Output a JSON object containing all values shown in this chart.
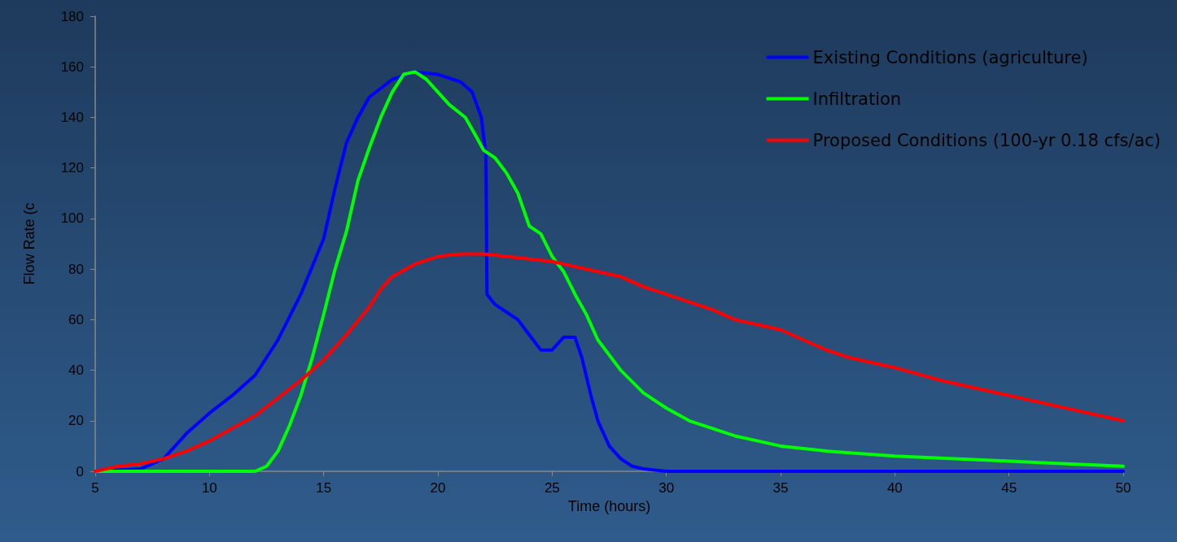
{
  "chart_data": {
    "type": "line",
    "xlabel": "Time (hours)",
    "ylabel": "Flow Rate (c",
    "xlim": [
      5,
      50
    ],
    "xticks": [
      5,
      10,
      15,
      20,
      25,
      30,
      35,
      40,
      45,
      50
    ],
    "ylim": [
      0,
      180
    ],
    "yticks": [
      0,
      20,
      40,
      60,
      80,
      100,
      120,
      140,
      160,
      180
    ],
    "grid": false,
    "legend": "top right",
    "marker": "none",
    "line_style": "solid",
    "series": [
      {
        "name": "Existing Conditions (agriculture)",
        "color": "#0000ff",
        "x": [
          5,
          7,
          8,
          9,
          10,
          11,
          12,
          13,
          14,
          15,
          15.5,
          16,
          16.5,
          17,
          18,
          19,
          20,
          21,
          21.5,
          21.9,
          22.1,
          22.15,
          22.5,
          23,
          23.5,
          24,
          24.5,
          25,
          25.5,
          26,
          26.3,
          26.7,
          27,
          27.5,
          28,
          28.5,
          29,
          30,
          50
        ],
        "values": [
          0,
          1,
          5,
          15,
          23,
          30,
          38,
          52,
          70,
          92,
          112,
          130,
          140,
          148,
          155,
          158,
          157,
          154,
          150,
          140,
          125,
          70,
          66,
          63,
          60,
          54,
          48,
          48,
          53,
          53,
          45,
          30,
          20,
          10,
          5,
          2,
          1,
          0,
          0
        ]
      },
      {
        "name": "Infiltration",
        "color": "#00ff00",
        "x": [
          5,
          12,
          12.5,
          13,
          13.5,
          14,
          14.5,
          15,
          15.5,
          16,
          16.5,
          17,
          17.5,
          18,
          18.5,
          19,
          19.5,
          20,
          20.5,
          21.2,
          21.7,
          22,
          22.5,
          23,
          23.5,
          24,
          24.5,
          25,
          25.5,
          26,
          26.5,
          27,
          28,
          29,
          30,
          31,
          32,
          33,
          34,
          35,
          37,
          40,
          45,
          50
        ],
        "values": [
          0,
          0,
          2,
          8,
          18,
          30,
          45,
          62,
          80,
          95,
          115,
          128,
          140,
          150,
          157,
          158,
          155,
          150,
          145,
          140,
          132,
          127,
          124,
          118,
          110,
          97,
          94,
          85,
          79,
          70,
          62,
          52,
          40,
          31,
          25,
          20,
          17,
          14,
          12,
          10,
          8,
          6,
          4,
          2
        ]
      },
      {
        "name": "Proposed Conditions (100-yr 0.18 cfs/ac)",
        "color": "#ff0000",
        "x": [
          5,
          6,
          7,
          8,
          9,
          10,
          11,
          12,
          13,
          14,
          15,
          16,
          17,
          17.5,
          18,
          19,
          20,
          21,
          22,
          23,
          24,
          25,
          26,
          27,
          28,
          29,
          30,
          31,
          32,
          33,
          34,
          35,
          36,
          37,
          38,
          39,
          40,
          42,
          44,
          46,
          48,
          50
        ],
        "values": [
          0,
          2,
          3,
          5,
          8,
          12,
          17,
          22,
          29,
          36,
          44,
          54,
          65,
          72,
          77,
          82,
          85,
          86,
          86,
          85,
          84,
          83,
          81,
          79,
          77,
          73,
          70,
          67,
          64,
          60,
          58,
          56,
          52,
          48,
          45,
          43,
          41,
          36,
          32,
          28,
          24,
          20
        ]
      }
    ]
  }
}
